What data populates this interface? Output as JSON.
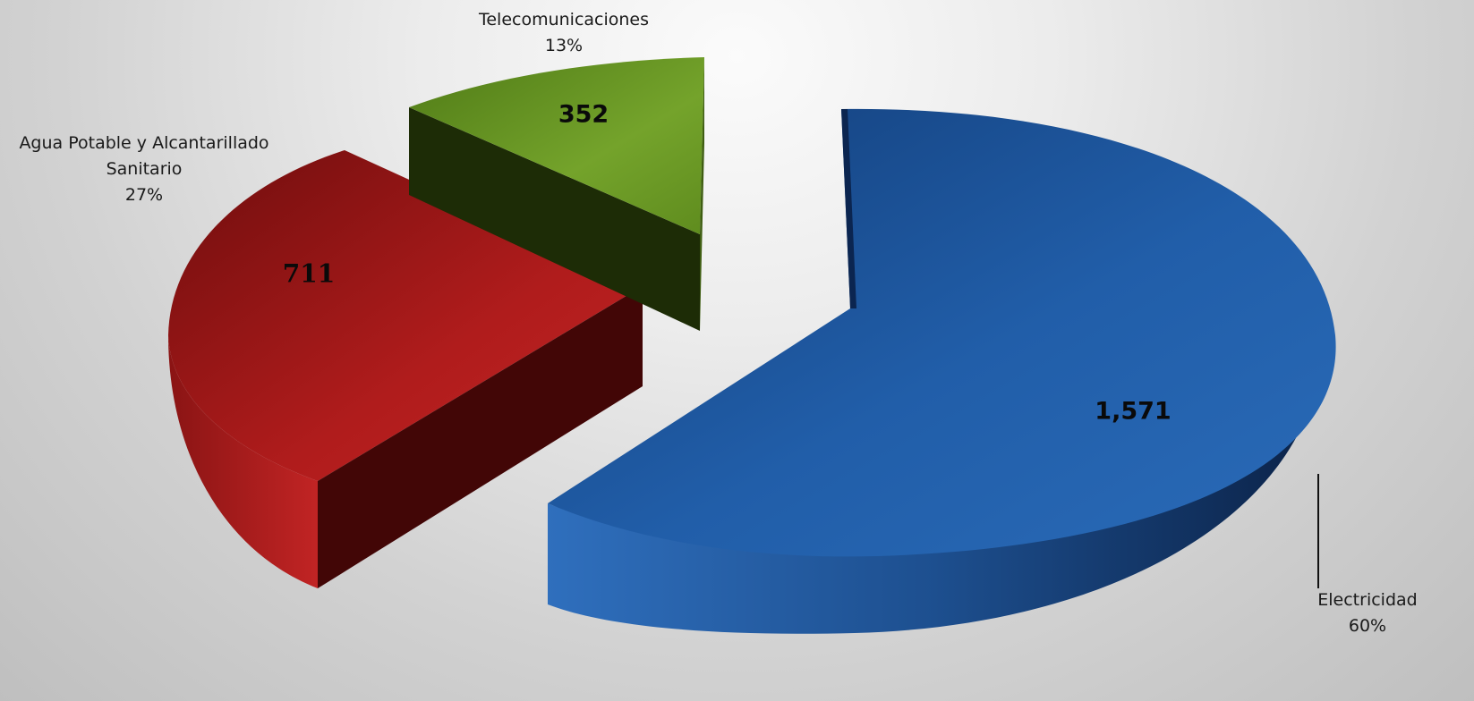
{
  "chart_data": {
    "type": "pie",
    "style": "3d-exploded",
    "slices": [
      {
        "key": "electricidad",
        "name": "Electricidad",
        "value": 1571,
        "value_label": "1,571",
        "percent_label": "60%",
        "color": "#1f5aa6"
      },
      {
        "key": "agua",
        "name": "Agua Potable y Alcantarillado Sanitario",
        "name_lines": [
          "Agua Potable y Alcantarillado",
          "Sanitario"
        ],
        "value": 711,
        "value_label": "711",
        "percent_label": "27%",
        "color": "#b01c1c"
      },
      {
        "key": "telecom",
        "name": "Telecomunicaciones",
        "value": 352,
        "value_label": "352",
        "percent_label": "13%",
        "color": "#6b9a24"
      }
    ],
    "legend": "none"
  }
}
